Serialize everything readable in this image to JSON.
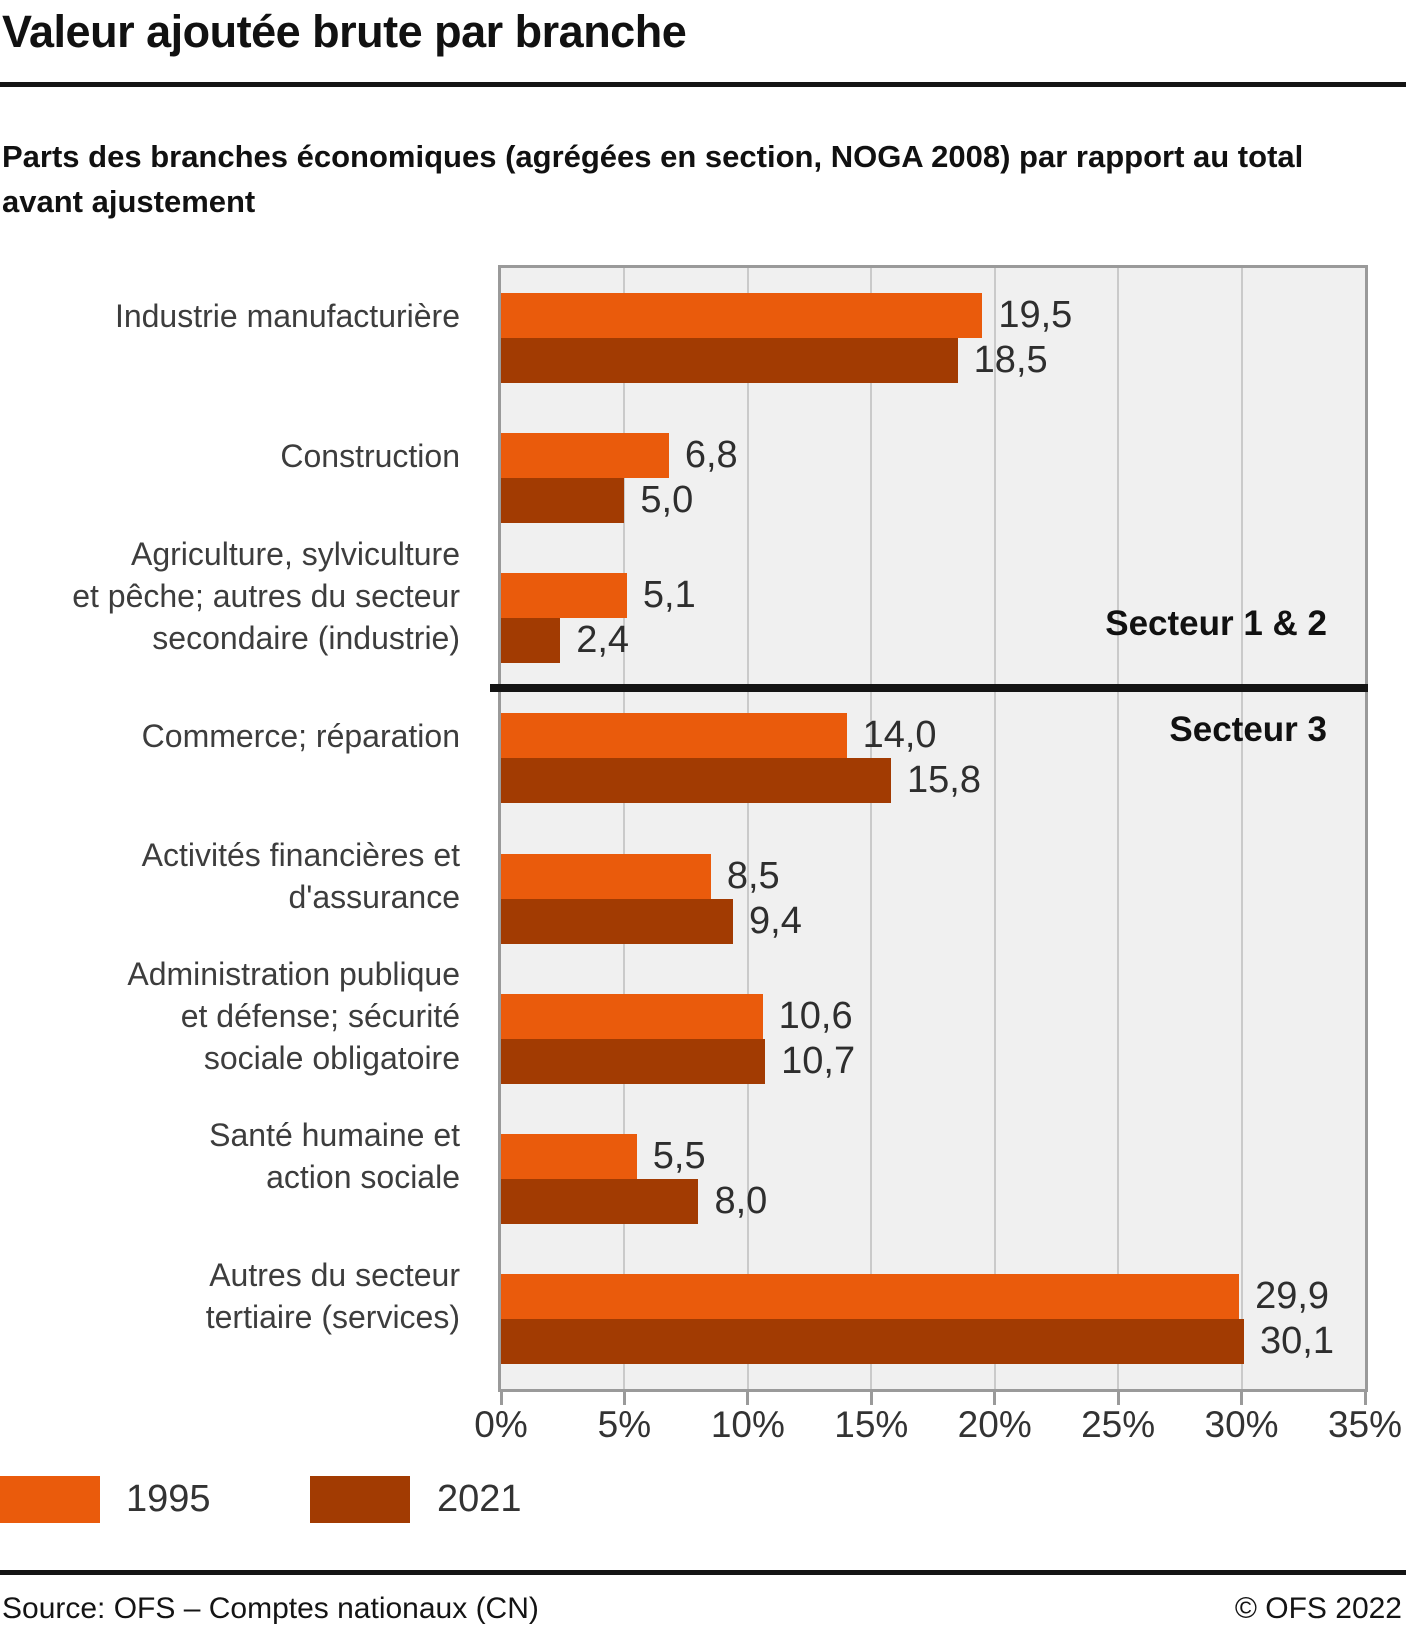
{
  "header": {
    "title": "Valeur ajoutée brute par branche",
    "subtitle": "Parts des branches économiques (agrégées en section, NOGA 2008) par rapport au total avant ajustement"
  },
  "chart_data": {
    "type": "bar",
    "orientation": "horizontal",
    "unit": "%",
    "decimal_separator": ",",
    "categories": [
      [
        "Industrie manufacturière"
      ],
      [
        "Construction"
      ],
      [
        "Agriculture, sylviculture",
        "et pêche; autres du secteur",
        "secondaire (industrie)"
      ],
      [
        "Commerce; réparation"
      ],
      [
        "Activités financières et",
        "d'assurance"
      ],
      [
        "Administration publique",
        "et défense; sécurité",
        "sociale obligatoire"
      ],
      [
        "Santé humaine et",
        "action sociale"
      ],
      [
        "Autres du secteur",
        "tertiaire (services)"
      ]
    ],
    "series": [
      {
        "name": "1995",
        "color": "#ea5b0c",
        "values": [
          19.5,
          6.8,
          5.1,
          14.0,
          8.5,
          10.6,
          5.5,
          29.9
        ]
      },
      {
        "name": "2021",
        "color": "#a23b02",
        "values": [
          18.5,
          5.0,
          2.4,
          15.8,
          9.4,
          10.7,
          8.0,
          30.1
        ]
      }
    ],
    "xlim": [
      0,
      35
    ],
    "xticks": [
      "0%",
      "5%",
      "10%",
      "15%",
      "20%",
      "25%",
      "30%",
      "35%"
    ],
    "grid": "vertical",
    "plot_background": "#f0f0f0",
    "sectors": [
      {
        "label": "Secteur 1 & 2",
        "rows": [
          0,
          1,
          2
        ]
      },
      {
        "label": "Secteur 3",
        "rows": [
          3,
          4,
          5,
          6,
          7
        ]
      }
    ]
  },
  "legend": {
    "items": [
      {
        "label": "1995",
        "color": "#ea5b0c"
      },
      {
        "label": "2021",
        "color": "#a23b02"
      }
    ]
  },
  "footer": {
    "source": "Source: OFS – Comptes nationaux (CN)",
    "copyright": "© OFS 2022"
  }
}
